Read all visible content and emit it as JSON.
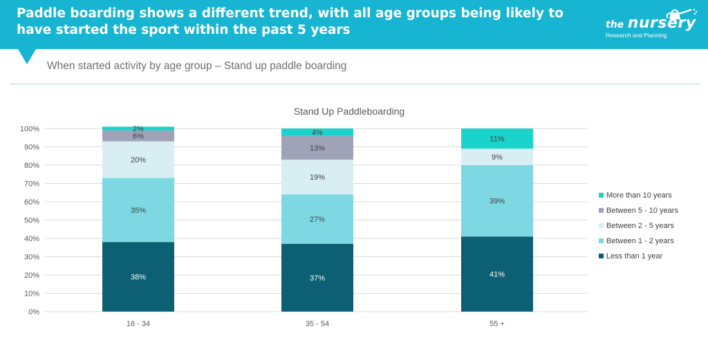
{
  "header": {
    "title": "Paddle boarding shows a different trend, with all age groups being likely to have started the sport within the past 5 years",
    "logo_the": "the",
    "logo_nursery": "nursery",
    "logo_sub": "Research and Planning"
  },
  "subtitle": "When started activity by age group – Stand up paddle boarding",
  "colors": {
    "header_bg": "#17b5d2",
    "less_than_1": "#0d5f73",
    "between_1_2": "#7dd8e4",
    "between_2_5": "#d9eef3",
    "between_5_10": "#a0a3b8",
    "more_than_10": "#19d3cc"
  },
  "chart_data": {
    "type": "bar",
    "stacked": true,
    "title": "Stand Up Paddleboarding",
    "categories": [
      "16 - 34",
      "35 - 54",
      "55 +"
    ],
    "ylim": [
      0,
      100
    ],
    "yticks": [
      "0%",
      "10%",
      "20%",
      "30%",
      "40%",
      "50%",
      "60%",
      "70%",
      "80%",
      "90%",
      "100%"
    ],
    "legend_position": "right",
    "grid": true,
    "series": [
      {
        "name": "Less than 1 year",
        "color": "#0d5f73",
        "label_color": "#ffffff",
        "values": [
          38,
          37,
          41
        ],
        "labels": [
          "38%",
          "37%",
          "41%"
        ]
      },
      {
        "name": "Between 1 - 2 years",
        "color": "#7dd8e4",
        "label_color": "#404040",
        "values": [
          35,
          27,
          39
        ],
        "labels": [
          "35%",
          "27%",
          "39%"
        ]
      },
      {
        "name": "Between 2 - 5 years",
        "color": "#d9eef3",
        "label_color": "#404040",
        "values": [
          20,
          19,
          9
        ],
        "labels": [
          "20%",
          "19%",
          "9%"
        ]
      },
      {
        "name": "Between 5 - 10 years",
        "color": "#a0a3b8",
        "label_color": "#404040",
        "values": [
          6,
          13,
          0
        ],
        "labels": [
          "6%",
          "13%",
          ""
        ]
      },
      {
        "name": "More than 10 years",
        "color": "#19d3cc",
        "label_color": "#404040",
        "values": [
          2,
          4,
          11
        ],
        "labels": [
          "2%",
          "4%",
          "11%"
        ]
      }
    ]
  }
}
